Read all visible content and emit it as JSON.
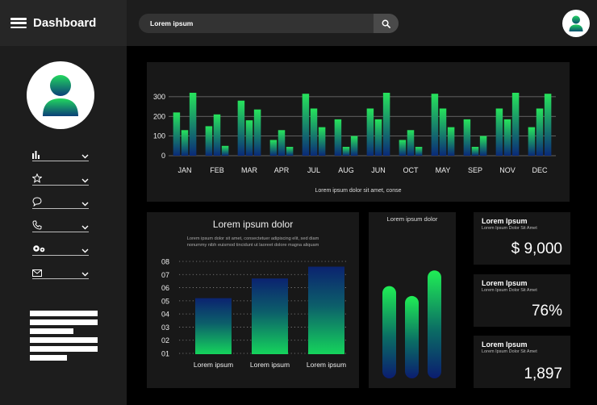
{
  "header": {
    "title": "Dashboard",
    "search_placeholder": "Lorem ipsum"
  },
  "sidebar": {
    "items": [
      {
        "icon": "bar-chart-icon"
      },
      {
        "icon": "star-icon"
      },
      {
        "icon": "chat-icon"
      },
      {
        "icon": "phone-icon"
      },
      {
        "icon": "settings-icon"
      },
      {
        "icon": "mail-icon"
      }
    ]
  },
  "colors": {
    "accent_green": "#1fe35a",
    "accent_teal": "#0a6f6a",
    "accent_navy": "#0b2b6e"
  },
  "chart_data": [
    {
      "type": "bar",
      "categories": [
        "JAN",
        "FEB",
        "MAR",
        "APR",
        "JUL",
        "AUG",
        "JUN",
        "OCT",
        "MAY",
        "SEP",
        "NOV",
        "DEC"
      ],
      "series": [
        {
          "values": [
            220,
            150,
            280,
            80,
            315,
            185,
            240,
            80,
            315,
            185,
            240,
            145
          ]
        },
        {
          "values": [
            130,
            210,
            180,
            130,
            240,
            45,
            185,
            130,
            240,
            45,
            185,
            240
          ]
        },
        {
          "values": [
            320,
            50,
            235,
            45,
            145,
            100,
            320,
            45,
            145,
            100,
            320,
            315
          ]
        }
      ],
      "ylim": [
        0,
        320
      ],
      "yticks": [
        0,
        100,
        200,
        300
      ],
      "caption": "Lorem ipsum dolor sit amet, conse"
    },
    {
      "type": "bar",
      "title": "Lorem ipsum dolor",
      "subtitle_lines": [
        "Lorem ipsum dolor sit amet, consectetuer adipiscing elit, sed diam",
        "nonummy nibh euismod tincidunt ut laoreet dolore magna aliquam"
      ],
      "categories": [
        "Lorem ipsum",
        "Lorem ipsum",
        "Lorem ipsum"
      ],
      "values": [
        5.2,
        6.7,
        7.6
      ],
      "yticks": [
        "01",
        "02",
        "03",
        "04",
        "05",
        "06",
        "07",
        "08"
      ],
      "ylim": [
        1,
        8
      ]
    },
    {
      "type": "bar",
      "title": "Lorem ipsum dolor",
      "values": [
        6.5,
        5.8,
        7.6
      ],
      "ylim": [
        0,
        10
      ]
    }
  ],
  "stats": [
    {
      "label": "Lorem Ipsum",
      "sub": "Lorem Ipsum Dolor Sit Amet",
      "value": "$ 9,000"
    },
    {
      "label": "Lorem Ipsum",
      "sub": "Lorem Ipsum Dolor Sit Amet",
      "value": "76%"
    },
    {
      "label": "Lorem Ipsum",
      "sub": "Lorem Ipsum Dolor Sit Amet",
      "value": "1,897"
    }
  ]
}
